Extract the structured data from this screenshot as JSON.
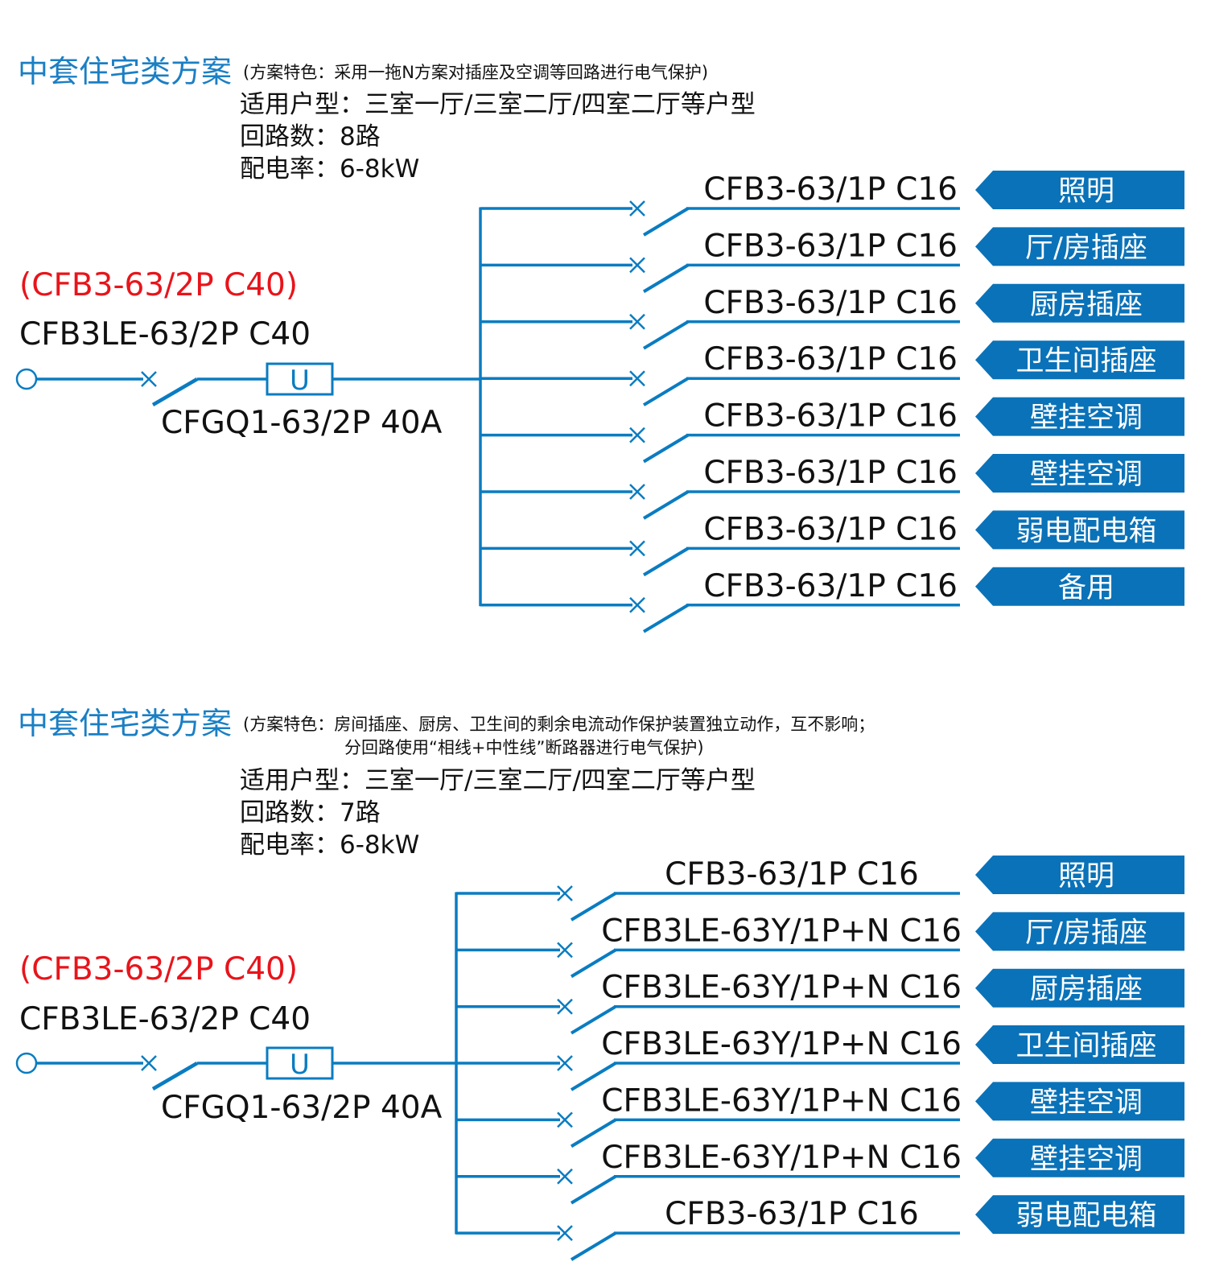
{
  "colors": {
    "line": "#0a7cc1",
    "tag": "#0a72b8",
    "tag_text": "#ffffff",
    "title": "#1a7fc4",
    "red": "#e8141b"
  },
  "schemes": [
    {
      "title": "中套住宅类方案",
      "feature_line1": "(方案特色：采用一拖N方案对插座及空调等回路进行电气保护)",
      "feature_line2": "",
      "applicable": "适用户型：三室一厅/三室二厅/四室二厅等户型",
      "circuits_count": "回路数：8路",
      "power": "配电率：6-8kW",
      "main_breaker_alt": "(CFB3-63/2P  C40)",
      "main_breaker": "CFB3LE-63/2P  C40",
      "isolator": "CFGQ1-63/2P  40A",
      "isolator_symbol": "U",
      "circuits": [
        {
          "breaker": "CFB3-63/1P  C16",
          "tag": "照明"
        },
        {
          "breaker": "CFB3-63/1P  C16",
          "tag": "厅/房插座"
        },
        {
          "breaker": "CFB3-63/1P  C16",
          "tag": "厨房插座"
        },
        {
          "breaker": "CFB3-63/1P  C16",
          "tag": "卫生间插座"
        },
        {
          "breaker": "CFB3-63/1P  C16",
          "tag": "壁挂空调"
        },
        {
          "breaker": "CFB3-63/1P  C16",
          "tag": "壁挂空调"
        },
        {
          "breaker": "CFB3-63/1P  C16",
          "tag": "弱电配电箱"
        },
        {
          "breaker": "CFB3-63/1P  C16",
          "tag": "备用"
        }
      ]
    },
    {
      "title": "中套住宅类方案",
      "feature_line1": "(方案特色：房间插座、厨房、卫生间的剩余电流动作保护装置独立动作，互不影响；",
      "feature_line2": "分回路使用“相线+中性线”断路器进行电气保护)",
      "applicable": "适用户型：三室一厅/三室二厅/四室二厅等户型",
      "circuits_count": "回路数：7路",
      "power": "配电率：6-8kW",
      "main_breaker_alt": "(CFB3-63/2P  C40)",
      "main_breaker": "CFB3LE-63/2P  C40",
      "isolator": "CFGQ1-63/2P  40A",
      "isolator_symbol": "U",
      "circuits": [
        {
          "breaker": "CFB3-63/1P  C16",
          "tag": "照明"
        },
        {
          "breaker": "CFB3LE-63Y/1P+N  C16",
          "tag": "厅/房插座"
        },
        {
          "breaker": "CFB3LE-63Y/1P+N  C16",
          "tag": "厨房插座"
        },
        {
          "breaker": "CFB3LE-63Y/1P+N  C16",
          "tag": "卫生间插座"
        },
        {
          "breaker": "CFB3LE-63Y/1P+N  C16",
          "tag": "壁挂空调"
        },
        {
          "breaker": "CFB3LE-63Y/1P+N  C16",
          "tag": "壁挂空调"
        },
        {
          "breaker": "CFB3-63/1P  C16",
          "tag": "弱电配电箱"
        }
      ]
    }
  ]
}
